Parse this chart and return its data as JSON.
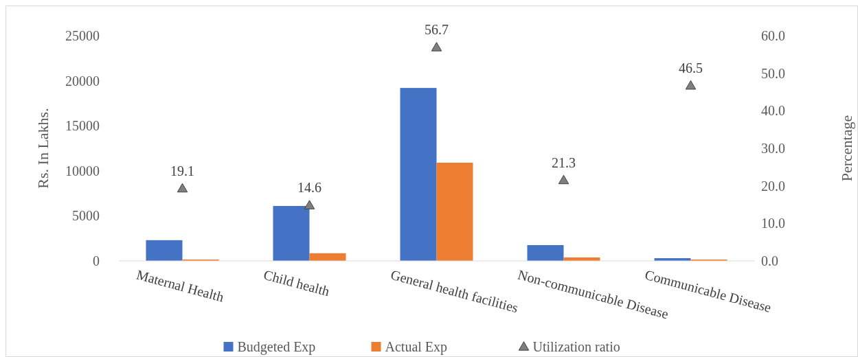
{
  "chart_data": {
    "type": "bar",
    "ylabel": "Rs. In Lakhs.",
    "y2label": "Percentage",
    "categories": [
      "Maternal Health",
      "Child health",
      "General health facilities",
      "Non-communicable Disease",
      "Communicable Disease"
    ],
    "series": [
      {
        "name": "Budgeted Exp",
        "color": "#4472c4",
        "values": [
          2300,
          6100,
          19200,
          1750,
          300
        ]
      },
      {
        "name": "Actual Exp",
        "color": "#ed7d31",
        "values": [
          150,
          850,
          10900,
          380,
          150
        ]
      },
      {
        "name": "Utilization ratio",
        "type": "scatter",
        "axis": "y2",
        "color": "#7f7f7f",
        "marker": "triangle",
        "values": [
          19.1,
          14.6,
          56.7,
          21.3,
          46.5
        ],
        "value_labels": [
          "19.1",
          "14.6",
          "56.7",
          "21.3",
          "46.5"
        ]
      }
    ],
    "ylim": [
      0,
      25000
    ],
    "yticks": [
      0,
      5000,
      10000,
      15000,
      20000,
      25000
    ],
    "y2lim": [
      0,
      60
    ],
    "y2ticks": [
      {
        "value": 0,
        "label": "0.0"
      },
      {
        "value": 10,
        "label": "10.0"
      },
      {
        "value": 20,
        "label": "20.0"
      },
      {
        "value": 30,
        "label": "30.0"
      },
      {
        "value": 40,
        "label": "40.0"
      },
      {
        "value": 50,
        "label": "50.0"
      },
      {
        "value": 60,
        "label": "60.0"
      }
    ],
    "grid": false,
    "legend": "bottom"
  }
}
